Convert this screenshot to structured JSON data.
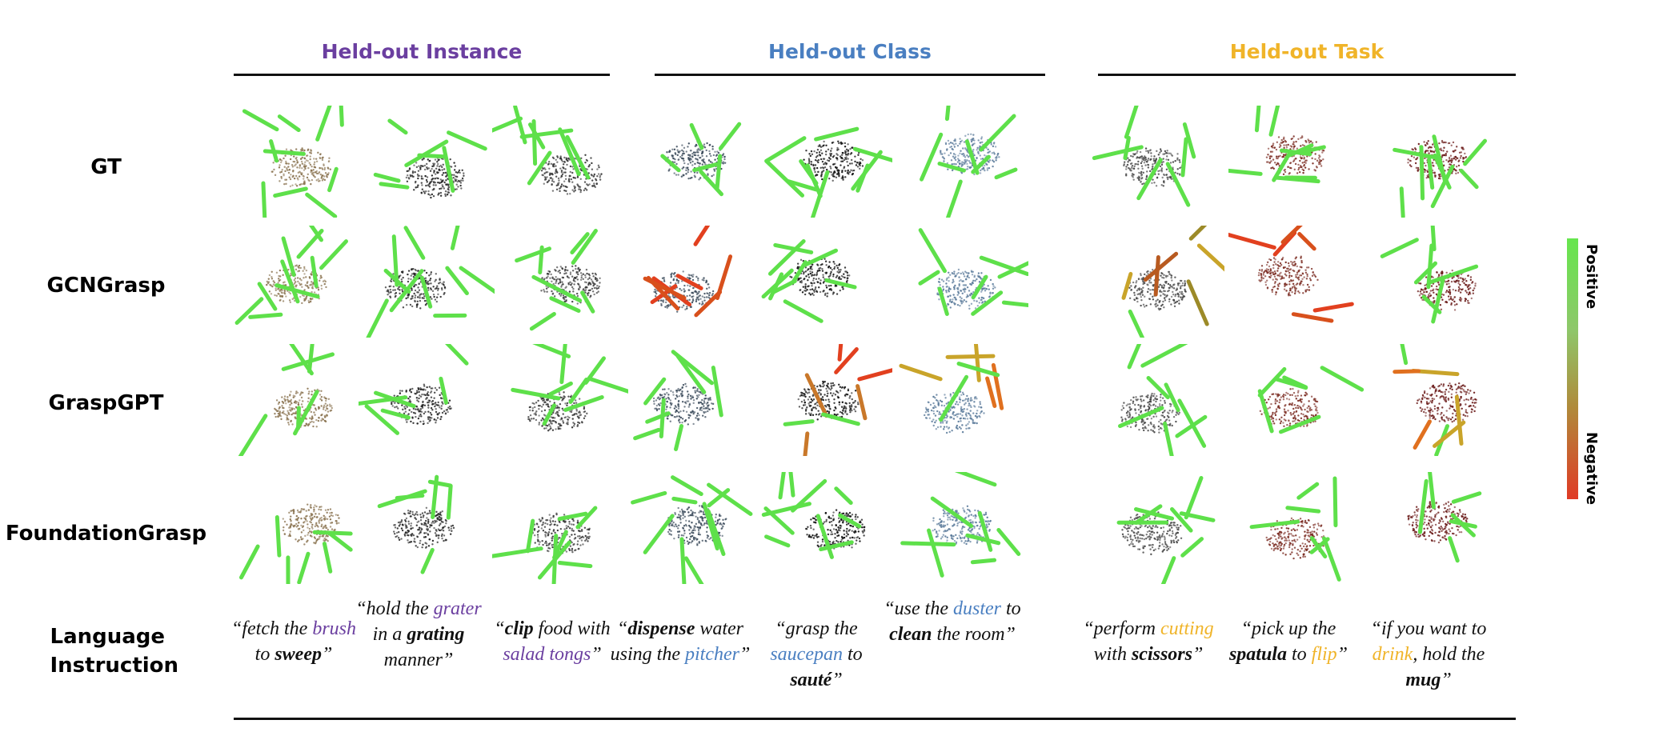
{
  "groups": [
    {
      "title": "Held-out Instance",
      "color": "#6b3fa0"
    },
    {
      "title": "Held-out Class",
      "color": "#4a7fc1"
    },
    {
      "title": "Held-out Task",
      "color": "#f0b429"
    }
  ],
  "rows": [
    "GT",
    "GCNGrasp",
    "GraspGPT",
    "FoundationGrasp",
    "Language Instruction"
  ],
  "instructions": [
    [
      {
        "t": "“fetch the "
      },
      {
        "t": "brush",
        "c": "#6b3fa0"
      },
      {
        "t": " to "
      },
      {
        "t": "sweep",
        "b": true
      },
      {
        "t": "”"
      }
    ],
    [
      {
        "t": "“hold the "
      },
      {
        "t": "grater",
        "c": "#6b3fa0"
      },
      {
        "t": " in a "
      },
      {
        "t": "grating",
        "b": true
      },
      {
        "t": " manner”"
      }
    ],
    [
      {
        "t": "“"
      },
      {
        "t": "clip",
        "b": true
      },
      {
        "t": " food with "
      },
      {
        "t": "salad tongs",
        "c": "#6b3fa0"
      },
      {
        "t": "”"
      }
    ],
    [
      {
        "t": "“"
      },
      {
        "t": "dispense",
        "b": true
      },
      {
        "t": " water using the "
      },
      {
        "t": "pitcher",
        "c": "#4a7fc1"
      },
      {
        "t": "”"
      }
    ],
    [
      {
        "t": "“grasp the "
      },
      {
        "t": "saucepan",
        "c": "#4a7fc1"
      },
      {
        "t": " to "
      },
      {
        "t": "sauté",
        "b": true
      },
      {
        "t": "”"
      }
    ],
    [
      {
        "t": "“use the "
      },
      {
        "t": "duster",
        "c": "#4a7fc1"
      },
      {
        "t": " to "
      },
      {
        "t": "clean",
        "b": true
      },
      {
        "t": " the room”"
      }
    ],
    [
      {
        "t": "“perform "
      },
      {
        "t": "cutting",
        "c": "#f0b429"
      },
      {
        "t": " with "
      },
      {
        "t": "scissors",
        "b": true
      },
      {
        "t": "”"
      }
    ],
    [
      {
        "t": "“pick up the "
      },
      {
        "t": "spatula",
        "b": true
      },
      {
        "t": " to "
      },
      {
        "t": "flip",
        "c": "#f0b429"
      },
      {
        "t": "”"
      }
    ],
    [
      {
        "t": "“if you want to "
      },
      {
        "t": "drink",
        "c": "#f0b429"
      },
      {
        "t": ", hold the "
      },
      {
        "t": "mug",
        "b": true
      },
      {
        "t": "”"
      }
    ]
  ],
  "legend": {
    "top": "Positive",
    "bottom": "Negative"
  }
}
